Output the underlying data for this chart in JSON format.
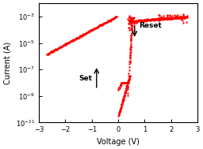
{
  "title": "",
  "xlabel": "Voltage (V)",
  "ylabel": "Current (A)",
  "xlim": [
    -3,
    3
  ],
  "ylim_log": [
    -11,
    -2
  ],
  "color": "#FF0000",
  "markersize": 1.8,
  "bg_color": "#FFFFFF",
  "set_label": "Set",
  "reset_label": "Reset"
}
